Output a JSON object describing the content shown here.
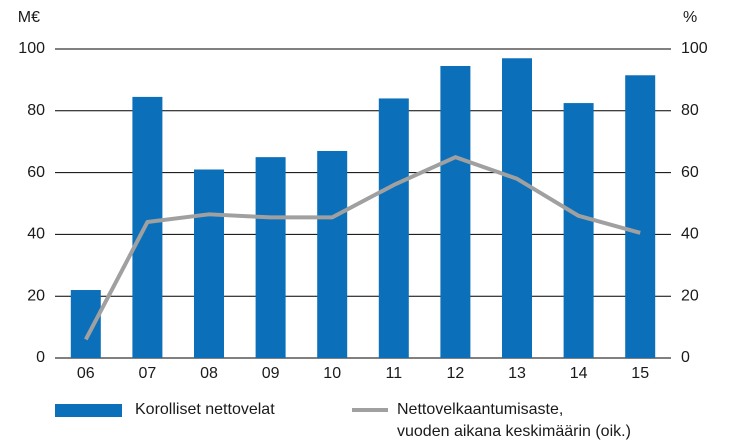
{
  "chart_data": {
    "type": "bar_line",
    "y_unit": "M€",
    "y2_unit": "%",
    "categories": [
      "06",
      "07",
      "08",
      "09",
      "10",
      "11",
      "12",
      "13",
      "14",
      "15"
    ],
    "series": [
      {
        "name": "Korolliset nettovelat",
        "type": "bar",
        "color": "#0b70b9",
        "axis": "y",
        "values": [
          22,
          84.5,
          61,
          65,
          67,
          84,
          94.5,
          97,
          82.5,
          91.5
        ]
      },
      {
        "name": "Nettovelkaantumisaste,\nvuoden aikana keskimäärin (oik.)",
        "type": "line",
        "color": "#a0a0a0",
        "axis": "y2",
        "values": [
          6,
          44,
          46.5,
          45.5,
          45.5,
          56,
          65,
          58,
          46,
          40.5
        ]
      }
    ],
    "ylim": [
      0,
      100
    ],
    "yticks": [
      0,
      20,
      40,
      60,
      80,
      100
    ],
    "y2lim": [
      0,
      100
    ],
    "y2ticks": [
      0,
      20,
      40,
      60,
      80,
      100
    ],
    "grid": true
  }
}
